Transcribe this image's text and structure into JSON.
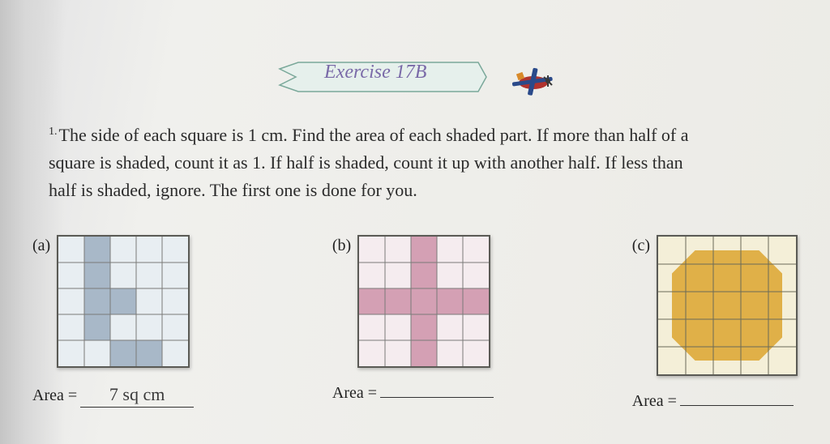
{
  "banner": {
    "text": "Exercise 17B",
    "banner_fill": "#e6f0ec",
    "banner_stroke": "#7aa89a",
    "text_color": "#7a6aa8",
    "fontsize": 24
  },
  "plane": {
    "body_color": "#b0332e",
    "wing_color": "#2a4a8a",
    "prop_color": "#3a3a3a",
    "accent": "#d88a2a"
  },
  "question": {
    "line1_prefix": "The side of each square is 1 cm. Find the area of each shaded part. If more than half of a",
    "line2": "square is shaded, count it as 1. If half is shaded, count it up with another half. If less than",
    "line3": "half is shaded, ignore. The first one is done for you.",
    "fontsize": 22,
    "color": "#2a2a2a"
  },
  "prob_a": {
    "label": "(a)",
    "grid": {
      "rows": 5,
      "cols": 5,
      "cell": 32,
      "bg": "#e8eef2",
      "line": "#7a7a78",
      "shade": "#a8b8c8",
      "cells_full": [
        [
          0,
          1
        ],
        [
          1,
          1
        ],
        [
          2,
          1
        ],
        [
          2,
          2
        ],
        [
          3,
          1
        ],
        [
          4,
          2
        ],
        [
          4,
          3
        ]
      ],
      "cells_half_left": [],
      "cells_half_right": []
    },
    "area_label": "Area =",
    "area_value": "7 sq cm"
  },
  "prob_b": {
    "label": "(b)",
    "grid": {
      "rows": 5,
      "cols": 5,
      "cell": 32,
      "bg": "#f5ecef",
      "line": "#7a7a78",
      "shade": "#d4a0b4",
      "cells_full": [
        [
          0,
          2
        ],
        [
          1,
          2
        ],
        [
          2,
          0
        ],
        [
          2,
          1
        ],
        [
          2,
          2
        ],
        [
          2,
          3
        ],
        [
          2,
          4
        ],
        [
          3,
          2
        ],
        [
          4,
          2
        ]
      ]
    },
    "area_label": "Area =",
    "area_value": ""
  },
  "prob_c": {
    "label": "(c)",
    "grid": {
      "rows": 5,
      "cols": 5,
      "cell": 34,
      "bg": "#f4efd8",
      "line": "#6a6a58",
      "shade": "#e0b048",
      "octagon_inset": 0.42
    },
    "area_label": "Area =",
    "area_value": ""
  }
}
